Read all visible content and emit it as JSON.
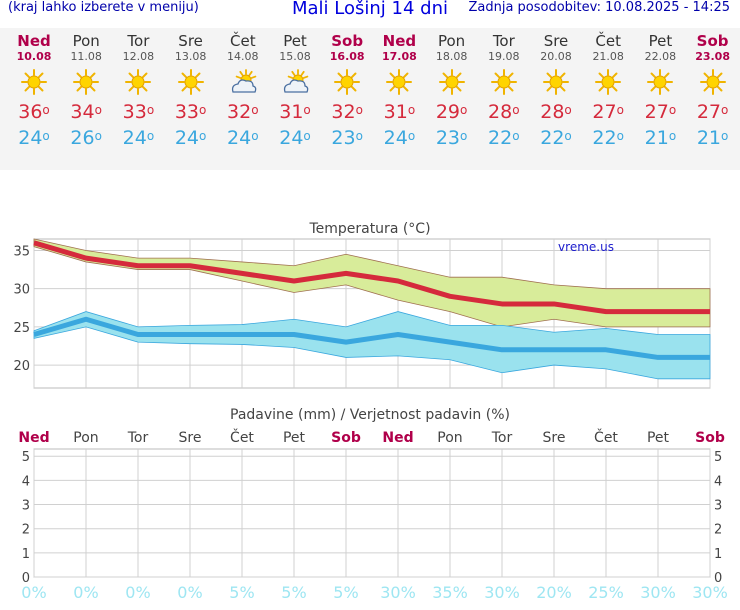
{
  "header": {
    "left": "(kraj lahko izberete v meniju)",
    "title": "Mali Lošinj 14 dni",
    "right": "Zadnja posodobitev: 10.08.2025 - 14:25"
  },
  "days": [
    {
      "name": "Ned",
      "date": "10.08",
      "icon": "sun-icon",
      "max": "36",
      "min": "24",
      "weekend": true
    },
    {
      "name": "Pon",
      "date": "11.08",
      "icon": "sun-icon",
      "max": "34",
      "min": "26",
      "weekend": false
    },
    {
      "name": "Tor",
      "date": "12.08",
      "icon": "sun-icon",
      "max": "33",
      "min": "24",
      "weekend": false
    },
    {
      "name": "Sre",
      "date": "13.08",
      "icon": "sun-icon",
      "max": "33",
      "min": "24",
      "weekend": false
    },
    {
      "name": "Čet",
      "date": "14.08",
      "icon": "partly-cloudy-icon",
      "max": "32",
      "min": "24",
      "weekend": false
    },
    {
      "name": "Pet",
      "date": "15.08",
      "icon": "partly-cloudy-icon",
      "max": "31",
      "min": "24",
      "weekend": false
    },
    {
      "name": "Sob",
      "date": "16.08",
      "icon": "sun-icon",
      "max": "32",
      "min": "23",
      "weekend": true
    },
    {
      "name": "Ned",
      "date": "17.08",
      "icon": "sun-icon",
      "max": "31",
      "min": "24",
      "weekend": true
    },
    {
      "name": "Pon",
      "date": "18.08",
      "icon": "sun-icon",
      "max": "29",
      "min": "23",
      "weekend": false
    },
    {
      "name": "Tor",
      "date": "19.08",
      "icon": "sun-icon",
      "max": "28",
      "min": "22",
      "weekend": false
    },
    {
      "name": "Sre",
      "date": "20.08",
      "icon": "sun-icon",
      "max": "28",
      "min": "22",
      "weekend": false
    },
    {
      "name": "Čet",
      "date": "21.08",
      "icon": "sun-icon",
      "max": "27",
      "min": "22",
      "weekend": false
    },
    {
      "name": "Pet",
      "date": "22.08",
      "icon": "sun-icon",
      "max": "27",
      "min": "21",
      "weekend": false
    },
    {
      "name": "Sob",
      "date": "23.08",
      "icon": "sun-icon",
      "max": "27",
      "min": "21",
      "weekend": true
    }
  ],
  "colors": {
    "max_line": "#d52a3c",
    "max_band": "#d8ec9a",
    "min_line": "#3aa7de",
    "min_band": "#9ae2ee",
    "weekend": "#b0004a",
    "pct": "#9ee6f2",
    "grid": "#d0d0d0"
  },
  "chart_data": [
    {
      "type": "line",
      "title": "Temperatura (°C)",
      "watermark": "vreme.us",
      "ylim": [
        17,
        36.5
      ],
      "yticks": [
        20,
        25,
        30,
        35
      ],
      "x": [
        0,
        1,
        2,
        3,
        4,
        5,
        6,
        7,
        8,
        9,
        10,
        11,
        12,
        13
      ],
      "series": [
        {
          "name": "max",
          "values": [
            36,
            34,
            33,
            33,
            32,
            31,
            32,
            31,
            29,
            28,
            28,
            27,
            27,
            27
          ],
          "upper": [
            36.5,
            35,
            34,
            34,
            33.5,
            33,
            34.5,
            33,
            31.5,
            31.5,
            30.5,
            30,
            30,
            30
          ],
          "lower": [
            35.5,
            33.5,
            32.5,
            32.5,
            31,
            29.5,
            30.5,
            28.5,
            27,
            25,
            26,
            25,
            25,
            25
          ]
        },
        {
          "name": "min",
          "values": [
            24,
            26,
            24,
            24,
            24,
            24,
            23,
            24,
            23,
            22,
            22,
            22,
            21,
            21
          ],
          "upper": [
            24.5,
            27,
            25,
            25.2,
            25.3,
            26,
            25,
            27,
            25.2,
            25.2,
            24.3,
            24.8,
            24,
            24
          ],
          "lower": [
            23.5,
            25,
            23,
            22.8,
            22.7,
            22.3,
            21,
            21.2,
            20.7,
            19,
            20,
            19.5,
            18.2,
            18.2
          ]
        }
      ]
    },
    {
      "type": "bar",
      "title": "Padavine (mm) / Verjetnost padavin (%)",
      "categories": [
        "Ned",
        "Pon",
        "Tor",
        "Sre",
        "Čet",
        "Pet",
        "Sob",
        "Ned",
        "Pon",
        "Tor",
        "Sre",
        "Čet",
        "Pet",
        "Sob"
      ],
      "values": [
        0,
        0,
        0,
        0,
        0,
        0,
        0,
        0,
        0,
        0,
        0,
        0,
        0,
        0
      ],
      "probability": [
        "0%",
        "0%",
        "0%",
        "0%",
        "5%",
        "5%",
        "5%",
        "30%",
        "35%",
        "30%",
        "20%",
        "25%",
        "30%",
        "30%"
      ],
      "ylim": [
        0,
        5.3
      ],
      "yticks": [
        "0",
        "1",
        "2",
        "3",
        "4",
        "5"
      ]
    }
  ]
}
